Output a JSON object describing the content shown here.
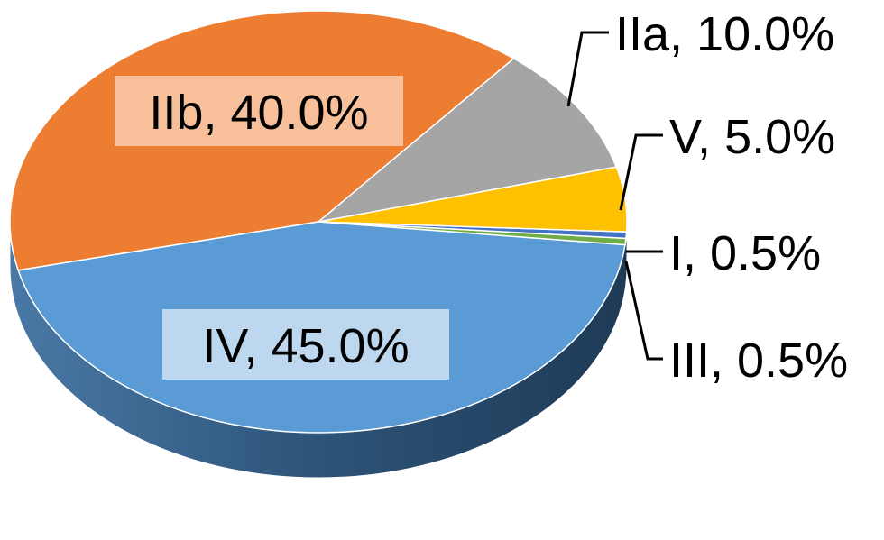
{
  "chart_data": {
    "type": "pie",
    "style": "3d",
    "title": "",
    "slices": [
      {
        "key": "III",
        "label": "III, 0.5%",
        "value": 0.5,
        "color": "#70ad47"
      },
      {
        "key": "I",
        "label": "I, 0.5%",
        "value": 0.5,
        "color": "#4472c4"
      },
      {
        "key": "V",
        "label": "V, 5.0%",
        "value": 5.0,
        "color": "#ffc000"
      },
      {
        "key": "IIa",
        "label": "IIa, 10.0%",
        "value": 10.0,
        "color": "#a5a5a5"
      },
      {
        "key": "IIb",
        "label": "IIb, 40.0%",
        "value": 40.0,
        "color": "#ed7d31"
      },
      {
        "key": "IV",
        "label": "IV, 45.0%",
        "value": 45.0,
        "color": "#5b9bd5"
      }
    ]
  }
}
